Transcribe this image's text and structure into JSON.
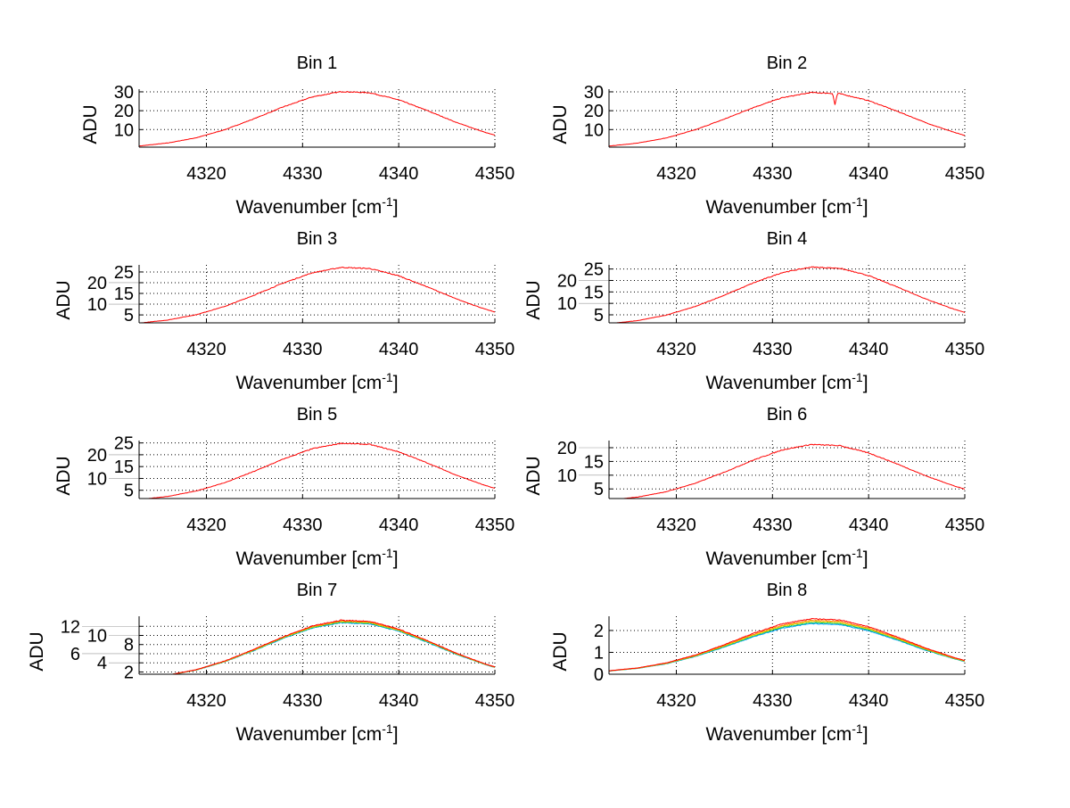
{
  "chart_data": {
    "type": "line",
    "layout": "4x2 subplots",
    "x_profile": [
      4313,
      4316,
      4319,
      4322,
      4325,
      4328,
      4331,
      4334,
      4337,
      4340,
      4343,
      4346,
      4349,
      4350
    ],
    "normalized_profile": [
      0.043,
      0.096,
      0.189,
      0.333,
      0.522,
      0.727,
      0.901,
      0.994,
      0.974,
      0.85,
      0.66,
      0.455,
      0.28,
      0.232
    ],
    "series_colors": [
      "#00a0ff",
      "#00c060",
      "#e0e000",
      "#ff8000",
      "#ff0000"
    ],
    "xlim": [
      4313,
      4350
    ],
    "xticks": [
      4320,
      4330,
      4340,
      4350
    ],
    "grid": true,
    "panels": [
      {
        "title": "Bin 1",
        "xlabel": "Wavenumber [cm",
        "xlabel_sup": "-1",
        "xlabel_end": "]",
        "ylabel": "ADU",
        "ylim": [
          0.7,
          31.4
        ],
        "yticks": [
          10,
          20,
          30
        ],
        "peak": 30.3,
        "offset": 0.0,
        "series_scales": [
          1
        ]
      },
      {
        "title": "Bin 2",
        "xlabel": "Wavenumber [cm",
        "xlabel_sup": "-1",
        "xlabel_end": "]",
        "ylabel": "ADU",
        "ylim": [
          0.7,
          31.4
        ],
        "yticks": [
          10,
          20,
          30
        ],
        "peak": 29.8,
        "offset": 0.0,
        "series_scales": [
          1
        ],
        "dip": {
          "x": 4336.5,
          "depth": 6
        }
      },
      {
        "title": "Bin 3",
        "xlabel": "Wavenumber [cm",
        "xlabel_sup": "-1",
        "xlabel_end": "]",
        "ylabel": "ADU",
        "ylim": [
          1.3,
          28.3
        ],
        "yticks": [
          5,
          10,
          15,
          20,
          25
        ],
        "peak": 27.3,
        "offset": 0.0,
        "series_scales": [
          1
        ]
      },
      {
        "title": "Bin 4",
        "xlabel": "Wavenumber [cm",
        "xlabel_sup": "-1",
        "xlabel_end": "]",
        "ylabel": "ADU",
        "ylim": [
          1.5,
          26.8
        ],
        "yticks": [
          5,
          10,
          15,
          20,
          25
        ],
        "peak": 26.0,
        "offset": 0.0,
        "series_scales": [
          1
        ]
      },
      {
        "title": "Bin 5",
        "xlabel": "Wavenumber [cm",
        "xlabel_sup": "-1",
        "xlabel_end": "]",
        "ylabel": "ADU",
        "ylim": [
          1.5,
          26.0
        ],
        "yticks": [
          5,
          10,
          15,
          20,
          25
        ],
        "peak": 25.0,
        "offset": 0.0,
        "series_scales": [
          1
        ]
      },
      {
        "title": "Bin 6",
        "xlabel": "Wavenumber [cm",
        "xlabel_sup": "-1",
        "xlabel_end": "]",
        "ylabel": "ADU",
        "ylim": [
          1.5,
          22.6
        ],
        "yticks": [
          5,
          10,
          15,
          20
        ],
        "peak": 21.3,
        "offset": 0.0,
        "series_scales": [
          1
        ]
      },
      {
        "title": "Bin 7",
        "xlabel": "Wavenumber [cm",
        "xlabel_sup": "-1",
        "xlabel_end": "]",
        "ylabel": "ADU",
        "ylim": [
          1.5,
          14.2
        ],
        "yticks": [
          2,
          4,
          6,
          8,
          10,
          12
        ],
        "peak": 13.4,
        "offset": 0.0,
        "series_scales": [
          0.96,
          0.97,
          0.98,
          0.99,
          1
        ]
      },
      {
        "title": "Bin 8",
        "xlabel": "Wavenumber [cm",
        "xlabel_sup": "-1",
        "xlabel_end": "]",
        "ylabel": "ADU",
        "ylim": [
          0,
          2.65
        ],
        "yticks": [
          0,
          1,
          2
        ],
        "peak": 2.45,
        "offset": 0.05,
        "series_scales": [
          0.93,
          0.95,
          0.97,
          0.99,
          1.02
        ]
      }
    ]
  }
}
